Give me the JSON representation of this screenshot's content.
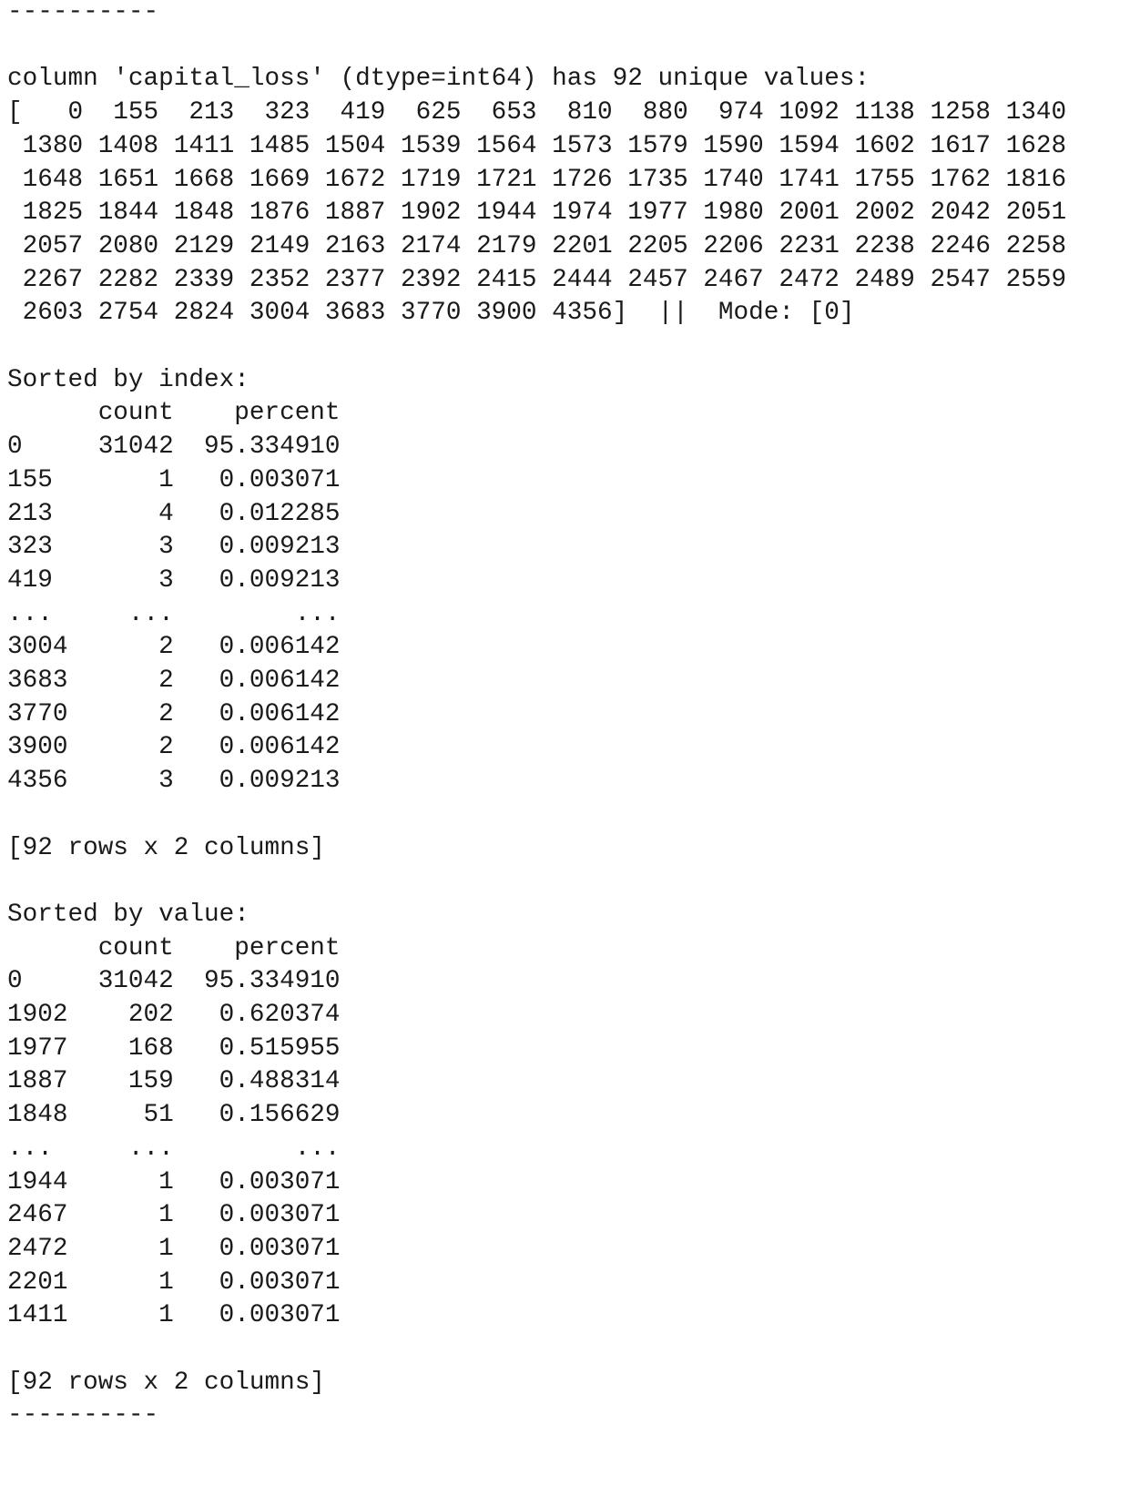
{
  "blocks": [
    [
      "----------"
    ],
    [
      "column 'capital_loss' (dtype=int64) has 92 unique values:",
      "[   0  155  213  323  419  625  653  810  880  974 1092 1138 1258 1340",
      " 1380 1408 1411 1485 1504 1539 1564 1573 1579 1590 1594 1602 1617 1628",
      " 1648 1651 1668 1669 1672 1719 1721 1726 1735 1740 1741 1755 1762 1816",
      " 1825 1844 1848 1876 1887 1902 1944 1974 1977 1980 2001 2002 2042 2051",
      " 2057 2080 2129 2149 2163 2174 2179 2201 2205 2206 2231 2238 2246 2258",
      " 2267 2282 2339 2352 2377 2392 2415 2444 2457 2467 2472 2489 2547 2559",
      " 2603 2754 2824 3004 3683 3770 3900 4356]  ||  Mode: [0]"
    ],
    [
      "Sorted by index:",
      "      count    percent",
      "0     31042  95.334910",
      "155       1   0.003071",
      "213       4   0.012285",
      "323       3   0.009213",
      "419       3   0.009213",
      "...     ...        ...",
      "3004      2   0.006142",
      "3683      2   0.006142",
      "3770      2   0.006142",
      "3900      2   0.006142",
      "4356      3   0.009213"
    ],
    [
      "[92 rows x 2 columns]"
    ],
    [
      "Sorted by value:",
      "      count    percent",
      "0     31042  95.334910",
      "1902    202   0.620374",
      "1977    168   0.515955",
      "1887    159   0.488314",
      "1848     51   0.156629",
      "...     ...        ...",
      "1944      1   0.003071",
      "2467      1   0.003071",
      "2472      1   0.003071",
      "2201      1   0.003071",
      "1411      1   0.003071"
    ],
    [
      "[92 rows x 2 columns]",
      "----------"
    ]
  ]
}
